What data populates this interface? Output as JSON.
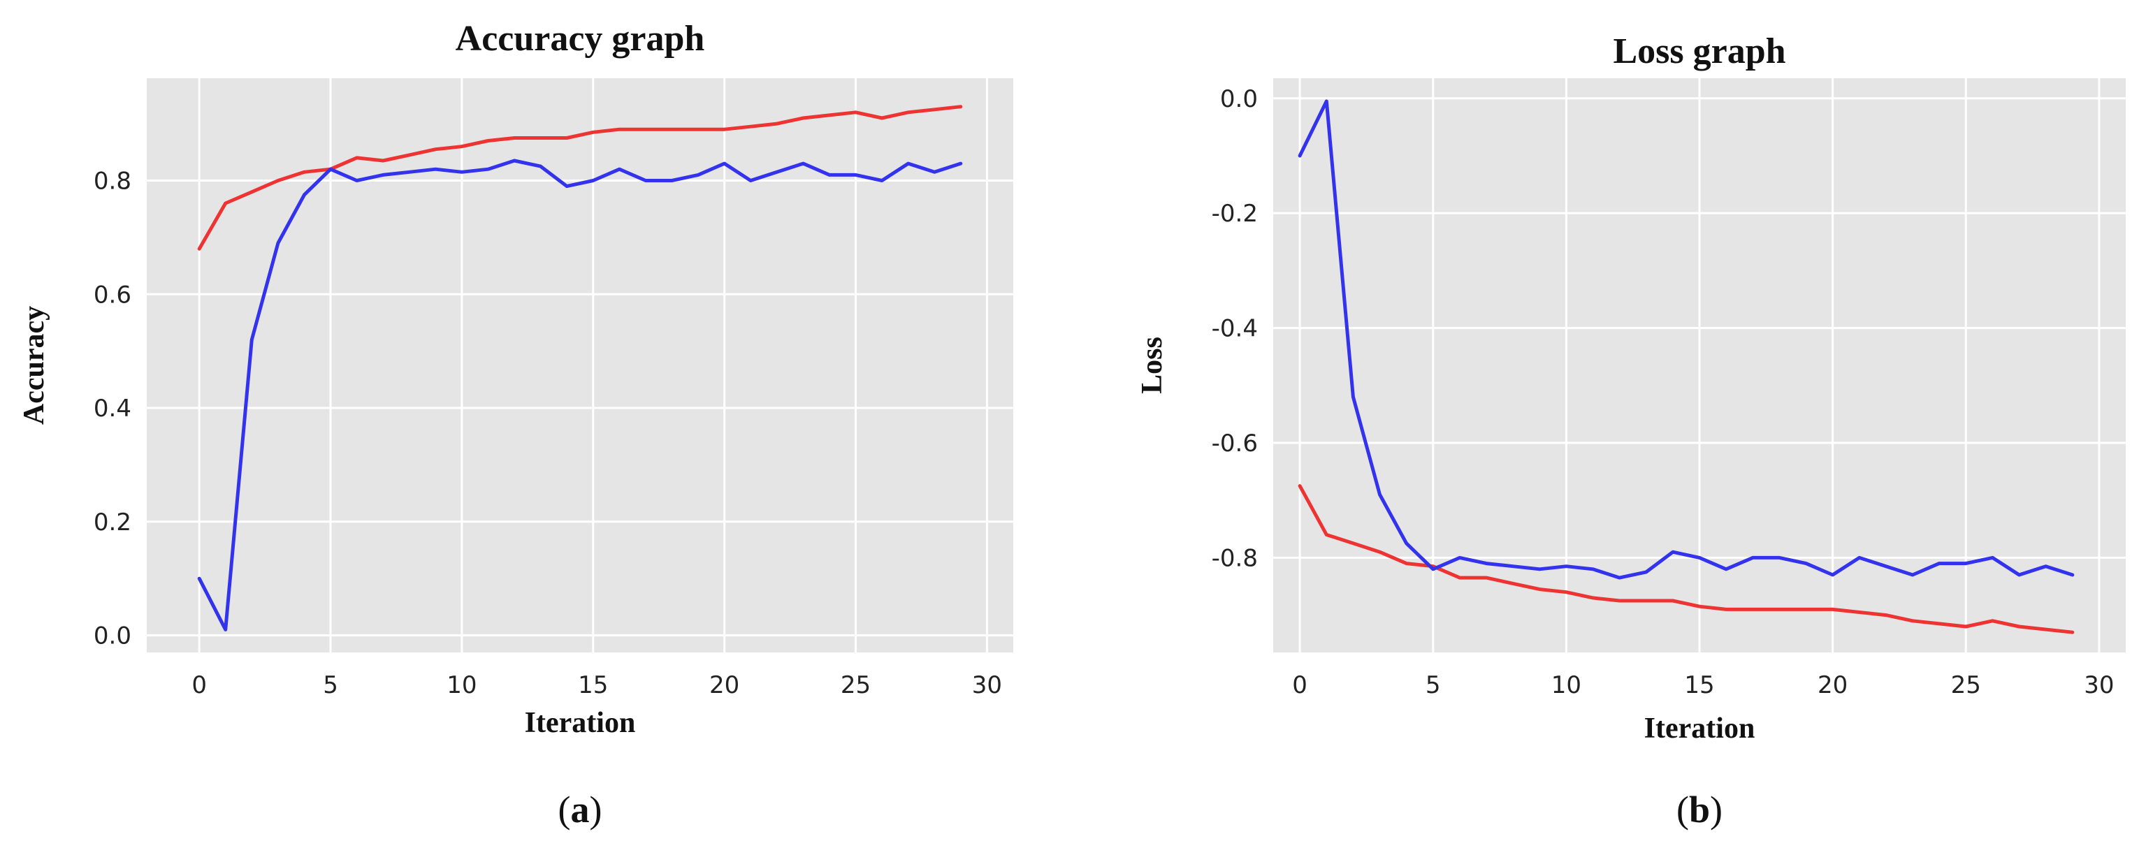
{
  "chart_data": [
    {
      "type": "line",
      "title": "Accuracy graph",
      "xlabel": "Iteration",
      "ylabel": "Accuracy",
      "panel_label": "(a)",
      "panel_letter": "a",
      "xlim": [
        -2,
        31
      ],
      "ylim": [
        -0.03,
        0.98
      ],
      "xticks": [
        0,
        5,
        10,
        15,
        20,
        25,
        30
      ],
      "yticks": [
        0.0,
        0.2,
        0.4,
        0.6,
        0.8
      ],
      "ytick_labels": [
        "0.0",
        "0.2",
        "0.4",
        "0.6",
        "0.8"
      ],
      "grid": true,
      "x": [
        0,
        1,
        2,
        3,
        4,
        5,
        6,
        7,
        8,
        9,
        10,
        11,
        12,
        13,
        14,
        15,
        16,
        17,
        18,
        19,
        20,
        21,
        22,
        23,
        24,
        25,
        26,
        27,
        28,
        29
      ],
      "series": [
        {
          "color": "#ee3333",
          "values": [
            0.68,
            0.76,
            0.78,
            0.8,
            0.815,
            0.82,
            0.84,
            0.835,
            0.845,
            0.855,
            0.86,
            0.87,
            0.875,
            0.875,
            0.875,
            0.885,
            0.89,
            0.89,
            0.89,
            0.89,
            0.89,
            0.895,
            0.9,
            0.91,
            0.915,
            0.92,
            0.91,
            0.92,
            0.925,
            0.93
          ]
        },
        {
          "color": "#3333ee",
          "values": [
            0.1,
            0.01,
            0.52,
            0.69,
            0.775,
            0.82,
            0.8,
            0.81,
            0.815,
            0.82,
            0.815,
            0.82,
            0.835,
            0.825,
            0.79,
            0.8,
            0.82,
            0.8,
            0.8,
            0.81,
            0.83,
            0.8,
            0.815,
            0.83,
            0.81,
            0.81,
            0.8,
            0.83,
            0.815,
            0.83
          ]
        }
      ]
    },
    {
      "type": "line",
      "title": "Loss graph",
      "xlabel": "Iteration",
      "ylabel": "Loss",
      "panel_label": "(b)",
      "panel_letter": "b",
      "xlim": [
        -1,
        31
      ],
      "ylim": [
        -0.965,
        0.035
      ],
      "xticks": [
        0,
        5,
        10,
        15,
        20,
        25,
        30
      ],
      "yticks": [
        0.0,
        -0.2,
        -0.4,
        -0.6,
        -0.8
      ],
      "ytick_labels": [
        "0.0",
        "-0.2",
        "-0.4",
        "-0.6",
        "-0.8"
      ],
      "grid": true,
      "x": [
        0,
        1,
        2,
        3,
        4,
        5,
        6,
        7,
        8,
        9,
        10,
        11,
        12,
        13,
        14,
        15,
        16,
        17,
        18,
        19,
        20,
        21,
        22,
        23,
        24,
        25,
        26,
        27,
        28,
        29
      ],
      "series": [
        {
          "color": "#ee3333",
          "values": [
            -0.675,
            -0.76,
            -0.775,
            -0.79,
            -0.81,
            -0.815,
            -0.835,
            -0.835,
            -0.845,
            -0.855,
            -0.86,
            -0.87,
            -0.875,
            -0.875,
            -0.875,
            -0.885,
            -0.89,
            -0.89,
            -0.89,
            -0.89,
            -0.89,
            -0.895,
            -0.9,
            -0.91,
            -0.915,
            -0.92,
            -0.91,
            -0.92,
            -0.925,
            -0.93
          ]
        },
        {
          "color": "#3333ee",
          "values": [
            -0.1,
            -0.005,
            -0.52,
            -0.69,
            -0.775,
            -0.82,
            -0.8,
            -0.81,
            -0.815,
            -0.82,
            -0.815,
            -0.82,
            -0.835,
            -0.825,
            -0.79,
            -0.8,
            -0.82,
            -0.8,
            -0.8,
            -0.81,
            -0.83,
            -0.8,
            -0.815,
            -0.83,
            -0.81,
            -0.81,
            -0.8,
            -0.83,
            -0.815,
            -0.83
          ]
        }
      ]
    }
  ]
}
